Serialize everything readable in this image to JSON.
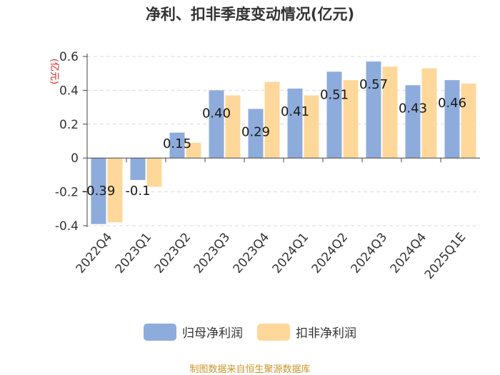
{
  "title": "净利、扣非季度变动情况(亿元)",
  "source": "制图数据来自恒生聚源数据库",
  "chart_data": {
    "type": "bar",
    "ylabel": "(亿元)",
    "ylim": [
      -0.4,
      0.6
    ],
    "yticks": [
      -0.4,
      -0.2,
      0,
      0.2,
      0.4,
      0.6
    ],
    "ytick_labels": [
      "-0.4",
      "-0.2",
      "0",
      "0.2",
      "0.4",
      "0.6"
    ],
    "grid": true,
    "legend_position": "bottom",
    "categories": [
      "2022Q4",
      "2023Q1",
      "2023Q2",
      "2023Q3",
      "2023Q4",
      "2024Q1",
      "2024Q2",
      "2024Q3",
      "2024Q4",
      "2025Q1E"
    ],
    "series": [
      {
        "name": "归母净利润",
        "color": "#8eacdb",
        "values": [
          -0.39,
          -0.13,
          0.15,
          0.4,
          0.29,
          0.41,
          0.51,
          0.57,
          0.43,
          0.46
        ],
        "labels": [
          "-0.39",
          "-0.1",
          "0.15",
          "0.40",
          "0.29",
          "0.41",
          "0.51",
          "0.57",
          "0.43",
          "0.46"
        ]
      },
      {
        "name": "扣非净利润",
        "color": "#fdd89a",
        "values": [
          -0.38,
          -0.17,
          0.09,
          0.37,
          0.45,
          0.37,
          0.46,
          0.54,
          0.53,
          0.44
        ]
      }
    ]
  }
}
